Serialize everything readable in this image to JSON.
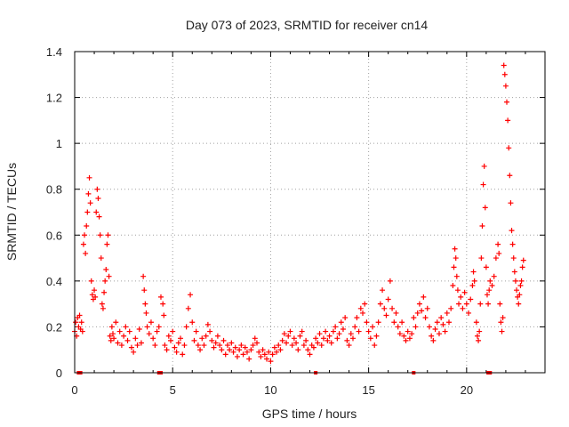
{
  "chart_data": {
    "type": "scatter",
    "title": "Day 073 of 2023, SRMTID for receiver cn14",
    "xlabel": "GPS time / hours",
    "ylabel": "SRMTID / TECUs",
    "xlim": [
      0,
      24
    ],
    "ylim": [
      0,
      1.4
    ],
    "x_ticks": [
      0,
      5,
      10,
      15,
      20
    ],
    "x_tick_labels": [
      "0",
      "5",
      "10",
      "15",
      "20"
    ],
    "y_ticks": [
      0,
      0.2,
      0.4,
      0.6,
      0.8,
      1.0,
      1.2,
      1.4
    ],
    "y_tick_labels": [
      "0",
      "0.2",
      "0.4",
      "0.6",
      "0.8",
      "1",
      "1.2",
      "1.4"
    ],
    "grid": true,
    "marker": "+",
    "series": [
      {
        "name": "SRMTID",
        "color": "#ff0000",
        "points": [
          [
            0.0,
            0.18
          ],
          [
            0.05,
            0.22
          ],
          [
            0.1,
            0.16
          ],
          [
            0.15,
            0.24
          ],
          [
            0.2,
            0.2
          ],
          [
            0.25,
            0.25
          ],
          [
            0.3,
            0.19
          ],
          [
            0.35,
            0.22
          ],
          [
            0.4,
            0.18
          ],
          [
            0.45,
            0.56
          ],
          [
            0.5,
            0.6
          ],
          [
            0.55,
            0.52
          ],
          [
            0.6,
            0.64
          ],
          [
            0.65,
            0.7
          ],
          [
            0.7,
            0.78
          ],
          [
            0.75,
            0.85
          ],
          [
            0.8,
            0.74
          ],
          [
            0.85,
            0.4
          ],
          [
            0.9,
            0.34
          ],
          [
            0.95,
            0.32
          ],
          [
            1.0,
            0.36
          ],
          [
            1.05,
            0.33
          ],
          [
            1.1,
            0.7
          ],
          [
            1.15,
            0.8
          ],
          [
            1.2,
            0.76
          ],
          [
            1.25,
            0.68
          ],
          [
            1.3,
            0.6
          ],
          [
            1.35,
            0.5
          ],
          [
            1.4,
            0.3
          ],
          [
            1.45,
            0.28
          ],
          [
            1.5,
            0.35
          ],
          [
            1.55,
            0.4
          ],
          [
            1.6,
            0.45
          ],
          [
            1.65,
            0.56
          ],
          [
            1.7,
            0.6
          ],
          [
            1.75,
            0.42
          ],
          [
            1.8,
            0.16
          ],
          [
            1.85,
            0.14
          ],
          [
            1.9,
            0.2
          ],
          [
            1.95,
            0.17
          ],
          [
            2.0,
            0.15
          ],
          [
            2.1,
            0.22
          ],
          [
            2.2,
            0.13
          ],
          [
            2.3,
            0.18
          ],
          [
            2.4,
            0.12
          ],
          [
            2.5,
            0.16
          ],
          [
            2.6,
            0.2
          ],
          [
            2.7,
            0.14
          ],
          [
            2.8,
            0.18
          ],
          [
            2.9,
            0.11
          ],
          [
            3.0,
            0.09
          ],
          [
            3.1,
            0.15
          ],
          [
            3.2,
            0.12
          ],
          [
            3.3,
            0.19
          ],
          [
            3.4,
            0.13
          ],
          [
            3.5,
            0.42
          ],
          [
            3.55,
            0.36
          ],
          [
            3.6,
            0.3
          ],
          [
            3.65,
            0.26
          ],
          [
            3.7,
            0.2
          ],
          [
            3.8,
            0.17
          ],
          [
            3.9,
            0.22
          ],
          [
            4.0,
            0.15
          ],
          [
            4.1,
            0.12
          ],
          [
            4.2,
            0.18
          ],
          [
            4.3,
            0.2
          ],
          [
            4.4,
            0.33
          ],
          [
            4.5,
            0.3
          ],
          [
            4.55,
            0.25
          ],
          [
            4.6,
            0.12
          ],
          [
            4.7,
            0.1
          ],
          [
            4.8,
            0.16
          ],
          [
            4.9,
            0.14
          ],
          [
            5.0,
            0.18
          ],
          [
            5.1,
            0.11
          ],
          [
            5.2,
            0.09
          ],
          [
            5.3,
            0.13
          ],
          [
            5.4,
            0.15
          ],
          [
            5.5,
            0.08
          ],
          [
            5.6,
            0.12
          ],
          [
            5.7,
            0.2
          ],
          [
            5.8,
            0.28
          ],
          [
            5.9,
            0.34
          ],
          [
            6.0,
            0.22
          ],
          [
            6.1,
            0.14
          ],
          [
            6.2,
            0.18
          ],
          [
            6.3,
            0.12
          ],
          [
            6.4,
            0.1
          ],
          [
            6.5,
            0.15
          ],
          [
            6.6,
            0.12
          ],
          [
            6.7,
            0.16
          ],
          [
            6.8,
            0.21
          ],
          [
            6.9,
            0.18
          ],
          [
            7.0,
            0.14
          ],
          [
            7.1,
            0.11
          ],
          [
            7.2,
            0.13
          ],
          [
            7.3,
            0.16
          ],
          [
            7.4,
            0.12
          ],
          [
            7.5,
            0.1
          ],
          [
            7.6,
            0.14
          ],
          [
            7.7,
            0.08
          ],
          [
            7.8,
            0.12
          ],
          [
            7.9,
            0.1
          ],
          [
            8.0,
            0.13
          ],
          [
            8.1,
            0.09
          ],
          [
            8.2,
            0.11
          ],
          [
            8.3,
            0.07
          ],
          [
            8.4,
            0.1
          ],
          [
            8.5,
            0.12
          ],
          [
            8.6,
            0.08
          ],
          [
            8.7,
            0.11
          ],
          [
            8.8,
            0.09
          ],
          [
            8.9,
            0.06
          ],
          [
            9.0,
            0.1
          ],
          [
            9.1,
            0.12
          ],
          [
            9.2,
            0.15
          ],
          [
            9.3,
            0.13
          ],
          [
            9.4,
            0.09
          ],
          [
            9.5,
            0.07
          ],
          [
            9.6,
            0.1
          ],
          [
            9.7,
            0.08
          ],
          [
            9.8,
            0.06
          ],
          [
            9.9,
            0.09
          ],
          [
            10.0,
            0.05
          ],
          [
            10.1,
            0.08
          ],
          [
            10.2,
            0.11
          ],
          [
            10.3,
            0.09
          ],
          [
            10.4,
            0.12
          ],
          [
            10.5,
            0.1
          ],
          [
            10.6,
            0.14
          ],
          [
            10.7,
            0.17
          ],
          [
            10.8,
            0.13
          ],
          [
            10.9,
            0.16
          ],
          [
            11.0,
            0.18
          ],
          [
            11.1,
            0.12
          ],
          [
            11.2,
            0.15
          ],
          [
            11.3,
            0.13
          ],
          [
            11.4,
            0.1
          ],
          [
            11.5,
            0.16
          ],
          [
            11.6,
            0.18
          ],
          [
            11.7,
            0.12
          ],
          [
            11.8,
            0.14
          ],
          [
            11.9,
            0.1
          ],
          [
            12.0,
            0.08
          ],
          [
            12.1,
            0.12
          ],
          [
            12.2,
            0.11
          ],
          [
            12.3,
            0.15
          ],
          [
            12.4,
            0.13
          ],
          [
            12.5,
            0.17
          ],
          [
            12.6,
            0.12
          ],
          [
            12.7,
            0.15
          ],
          [
            12.8,
            0.18
          ],
          [
            12.9,
            0.14
          ],
          [
            13.0,
            0.16
          ],
          [
            13.1,
            0.13
          ],
          [
            13.2,
            0.18
          ],
          [
            13.3,
            0.2
          ],
          [
            13.4,
            0.15
          ],
          [
            13.5,
            0.17
          ],
          [
            13.6,
            0.22
          ],
          [
            13.7,
            0.19
          ],
          [
            13.8,
            0.24
          ],
          [
            13.9,
            0.14
          ],
          [
            14.0,
            0.12
          ],
          [
            14.1,
            0.17
          ],
          [
            14.2,
            0.15
          ],
          [
            14.3,
            0.2
          ],
          [
            14.4,
            0.24
          ],
          [
            14.5,
            0.18
          ],
          [
            14.6,
            0.28
          ],
          [
            14.7,
            0.26
          ],
          [
            14.8,
            0.3
          ],
          [
            14.9,
            0.22
          ],
          [
            15.0,
            0.18
          ],
          [
            15.1,
            0.15
          ],
          [
            15.2,
            0.2
          ],
          [
            15.3,
            0.12
          ],
          [
            15.4,
            0.16
          ],
          [
            15.5,
            0.22
          ],
          [
            15.6,
            0.3
          ],
          [
            15.7,
            0.36
          ],
          [
            15.8,
            0.28
          ],
          [
            15.9,
            0.25
          ],
          [
            16.0,
            0.32
          ],
          [
            16.1,
            0.4
          ],
          [
            16.2,
            0.28
          ],
          [
            16.3,
            0.22
          ],
          [
            16.4,
            0.26
          ],
          [
            16.5,
            0.2
          ],
          [
            16.6,
            0.17
          ],
          [
            16.7,
            0.22
          ],
          [
            16.8,
            0.16
          ],
          [
            16.9,
            0.14
          ],
          [
            17.0,
            0.18
          ],
          [
            17.1,
            0.15
          ],
          [
            17.2,
            0.17
          ],
          [
            17.3,
            0.24
          ],
          [
            17.4,
            0.2
          ],
          [
            17.5,
            0.26
          ],
          [
            17.6,
            0.3
          ],
          [
            17.7,
            0.27
          ],
          [
            17.8,
            0.33
          ],
          [
            17.9,
            0.24
          ],
          [
            18.0,
            0.28
          ],
          [
            18.1,
            0.2
          ],
          [
            18.2,
            0.16
          ],
          [
            18.3,
            0.14
          ],
          [
            18.4,
            0.19
          ],
          [
            18.5,
            0.22
          ],
          [
            18.6,
            0.17
          ],
          [
            18.7,
            0.24
          ],
          [
            18.8,
            0.21
          ],
          [
            18.9,
            0.18
          ],
          [
            19.0,
            0.26
          ],
          [
            19.1,
            0.22
          ],
          [
            19.2,
            0.28
          ],
          [
            19.3,
            0.38
          ],
          [
            19.35,
            0.46
          ],
          [
            19.4,
            0.54
          ],
          [
            19.45,
            0.5
          ],
          [
            19.5,
            0.42
          ],
          [
            19.55,
            0.36
          ],
          [
            19.6,
            0.3
          ],
          [
            19.7,
            0.33
          ],
          [
            19.8,
            0.28
          ],
          [
            19.9,
            0.35
          ],
          [
            20.0,
            0.3
          ],
          [
            20.1,
            0.26
          ],
          [
            20.2,
            0.32
          ],
          [
            20.3,
            0.38
          ],
          [
            20.35,
            0.44
          ],
          [
            20.4,
            0.4
          ],
          [
            20.5,
            0.22
          ],
          [
            20.55,
            0.16
          ],
          [
            20.6,
            0.14
          ],
          [
            20.65,
            0.18
          ],
          [
            20.7,
            0.3
          ],
          [
            20.75,
            0.5
          ],
          [
            20.8,
            0.64
          ],
          [
            20.85,
            0.82
          ],
          [
            20.9,
            0.9
          ],
          [
            20.95,
            0.72
          ],
          [
            21.0,
            0.46
          ],
          [
            21.05,
            0.34
          ],
          [
            21.1,
            0.3
          ],
          [
            21.15,
            0.36
          ],
          [
            21.2,
            0.4
          ],
          [
            21.3,
            0.38
          ],
          [
            21.4,
            0.42
          ],
          [
            21.5,
            0.5
          ],
          [
            21.6,
            0.56
          ],
          [
            21.65,
            0.52
          ],
          [
            21.7,
            0.3
          ],
          [
            21.75,
            0.22
          ],
          [
            21.8,
            0.18
          ],
          [
            21.85,
            0.24
          ],
          [
            21.9,
            1.34
          ],
          [
            21.95,
            1.3
          ],
          [
            22.0,
            1.25
          ],
          [
            22.05,
            1.18
          ],
          [
            22.1,
            1.1
          ],
          [
            22.15,
            0.98
          ],
          [
            22.2,
            0.86
          ],
          [
            22.25,
            0.74
          ],
          [
            22.3,
            0.62
          ],
          [
            22.35,
            0.56
          ],
          [
            22.4,
            0.5
          ],
          [
            22.45,
            0.44
          ],
          [
            22.5,
            0.4
          ],
          [
            22.55,
            0.36
          ],
          [
            22.6,
            0.33
          ],
          [
            22.65,
            0.3
          ],
          [
            22.7,
            0.34
          ],
          [
            22.75,
            0.38
          ],
          [
            22.8,
            0.4
          ],
          [
            22.85,
            0.46
          ],
          [
            22.9,
            0.49
          ]
        ]
      }
    ],
    "gap_markers_x": [
      0.2,
      0.3,
      4.3,
      4.4,
      12.3,
      17.3,
      21.1,
      21.2
    ]
  }
}
